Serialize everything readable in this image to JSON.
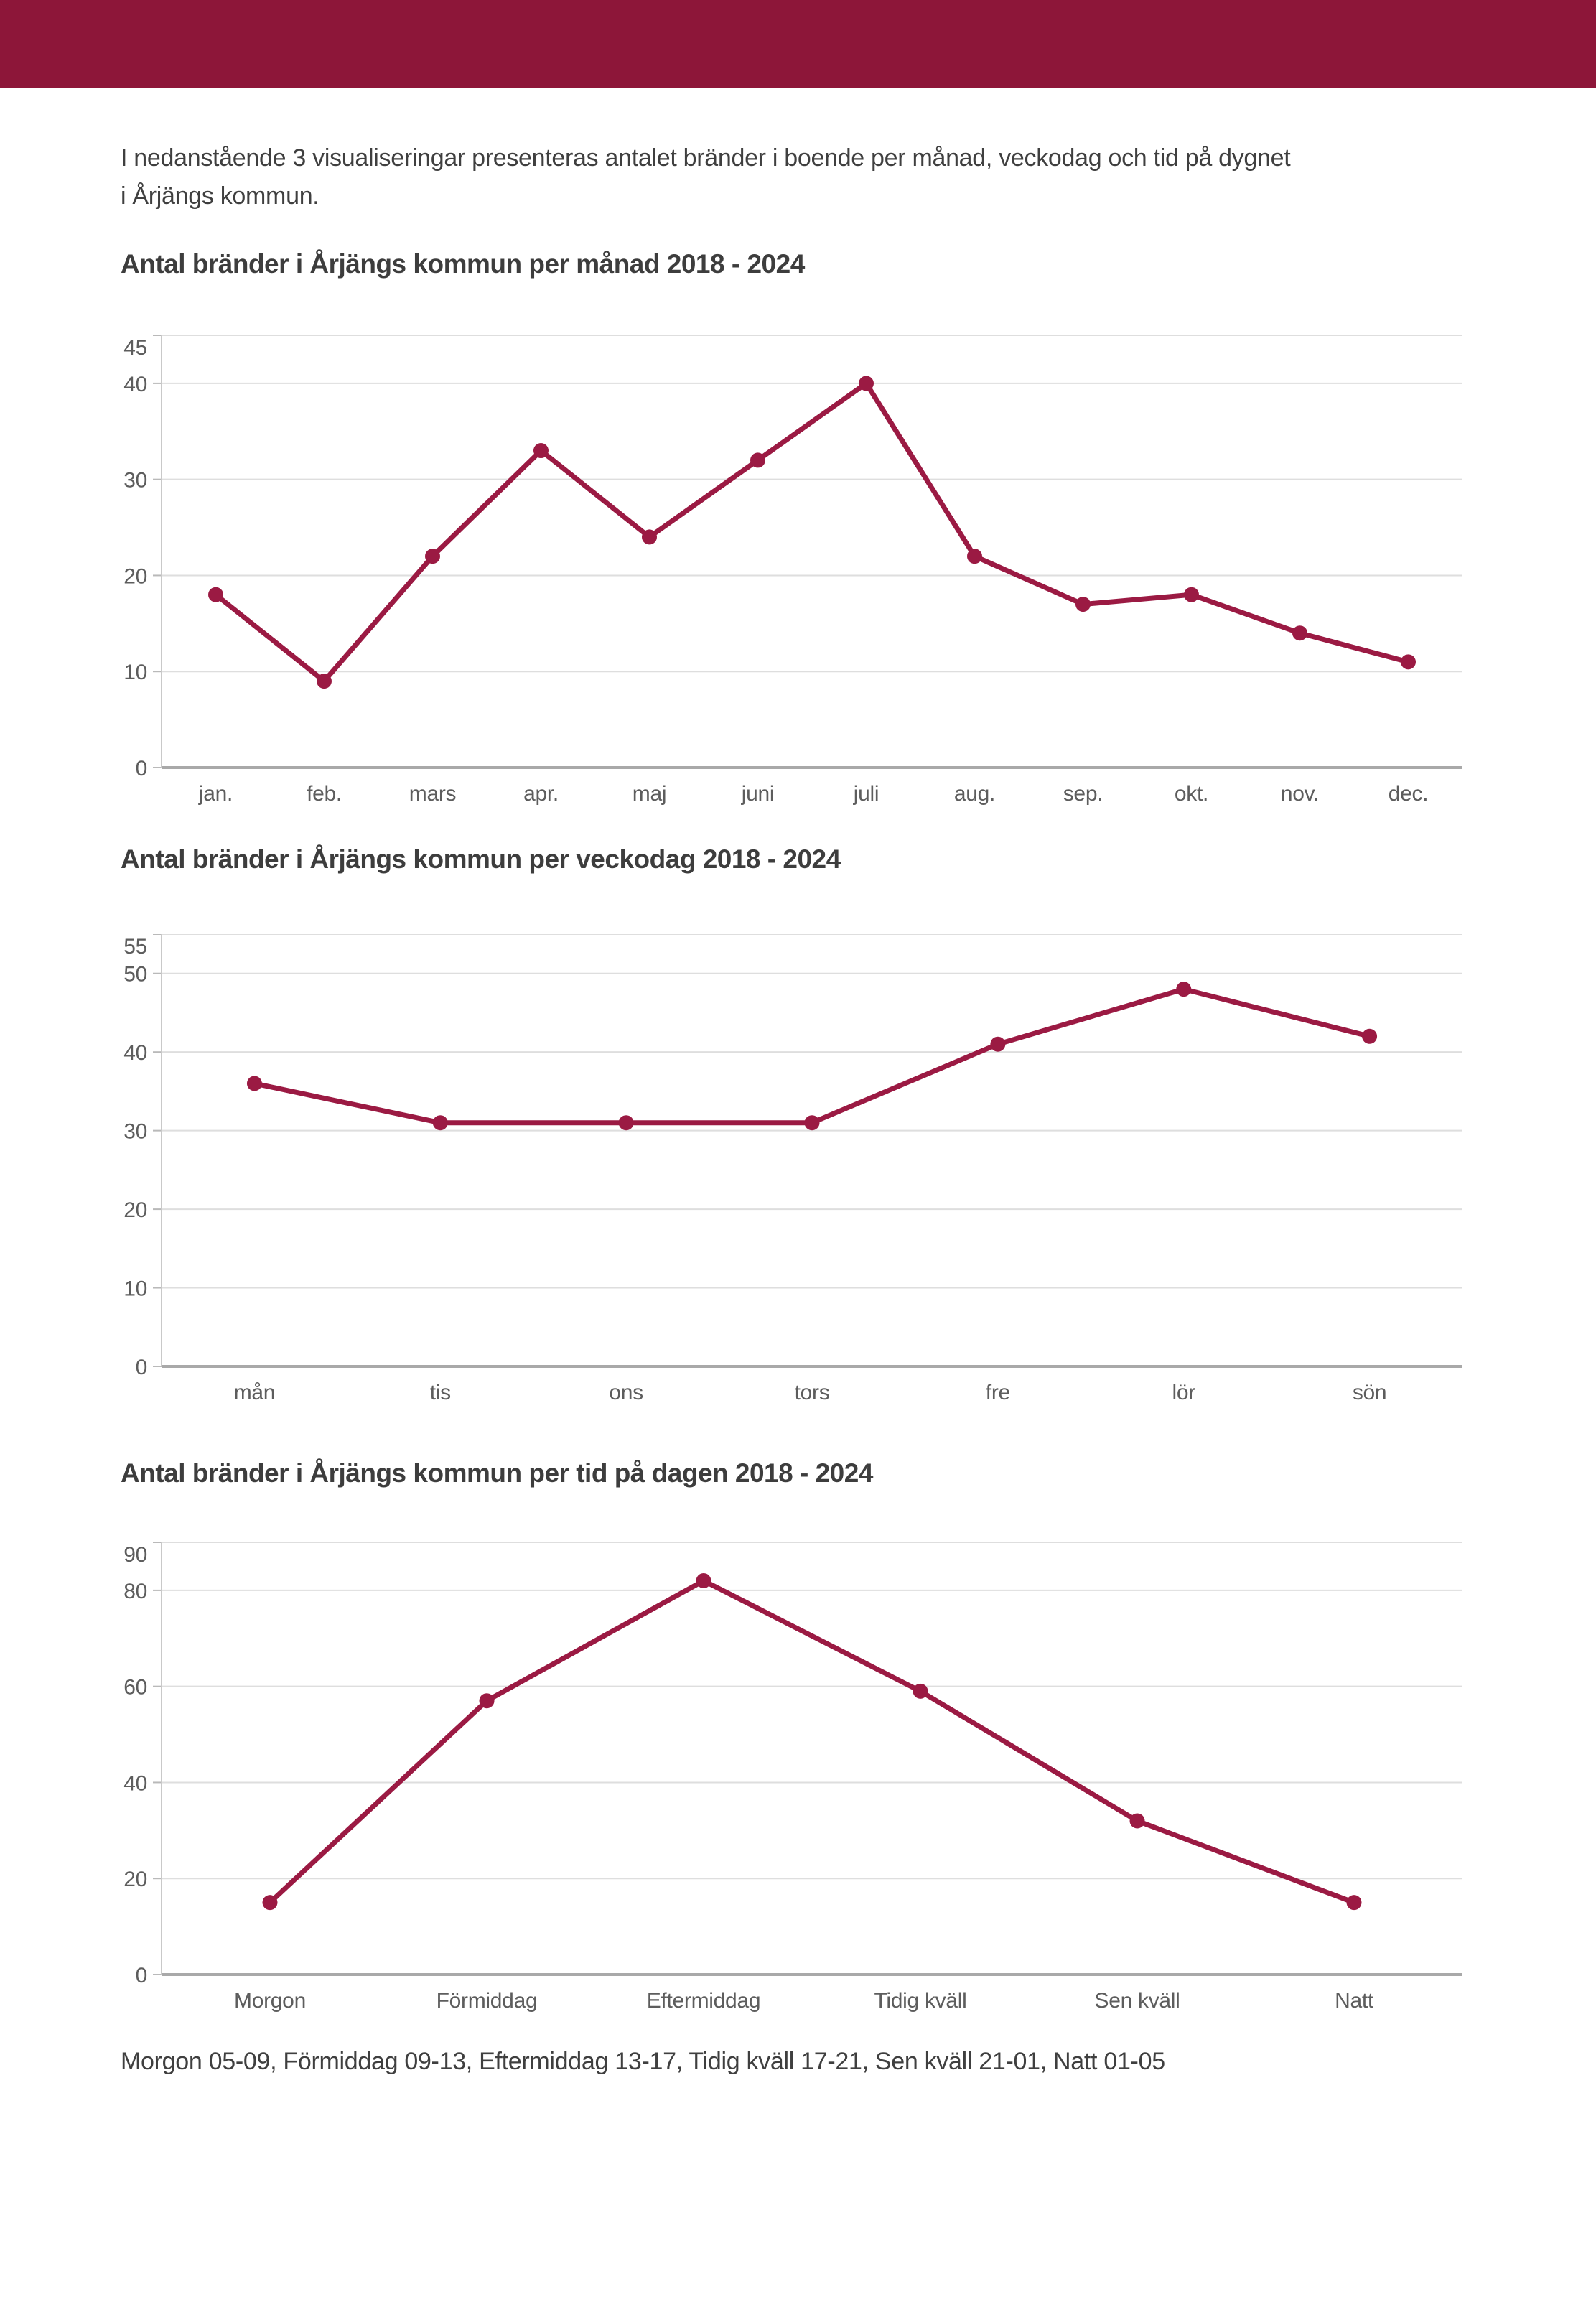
{
  "theme": {
    "header_color": "#8d1639",
    "accent_color": "#9b1a43",
    "grid_color": "#dedede",
    "zero_line_color": "#a9a9a9",
    "y_axis_color": "#c9c9c9",
    "tick_color": "#b9b9b9",
    "tick_label_color": "#5d5d5d",
    "text_color": "#3f3f3f"
  },
  "intro": {
    "line1": "I nedanstående 3 visualiseringar presenteras antalet bränder i boende per månad, veckodag och tid på dygnet",
    "line2": "i Årjängs kommun."
  },
  "footnote": {
    "text": "Morgon 05-09, Förmiddag 09-13, Eftermiddag 13-17, Tidig kväll 17-21, Sen kväll 21-01, Natt 01-05"
  },
  "chart_data": [
    {
      "type": "line",
      "title": "Antal bränder i Årjängs kommun per månad 2018 - 2024",
      "categories": [
        "jan.",
        "feb.",
        "mars",
        "apr.",
        "maj",
        "juni",
        "juli",
        "aug.",
        "sep.",
        "okt.",
        "nov.",
        "dec."
      ],
      "values": [
        18,
        9,
        22,
        33,
        24,
        32,
        40,
        22,
        17,
        18,
        14,
        11
      ],
      "xlabel": "",
      "ylabel": "",
      "ylim": [
        0,
        45
      ],
      "yticks": [
        0,
        10,
        20,
        30,
        40,
        45
      ],
      "grid": true,
      "legend": "none",
      "marker": "dot"
    },
    {
      "type": "line",
      "title": "Antal bränder i Årjängs kommun per veckodag 2018 - 2024",
      "categories": [
        "mån",
        "tis",
        "ons",
        "tors",
        "fre",
        "lör",
        "sön"
      ],
      "values": [
        36,
        31,
        31,
        31,
        41,
        48,
        42
      ],
      "xlabel": "",
      "ylabel": "",
      "ylim": [
        0,
        55
      ],
      "yticks": [
        0,
        10,
        20,
        30,
        40,
        50,
        55
      ],
      "grid": true,
      "legend": "none",
      "marker": "dot"
    },
    {
      "type": "line",
      "title": "Antal bränder i Årjängs kommun per tid på dagen 2018 - 2024",
      "categories": [
        "Morgon",
        "Förmiddag",
        "Eftermiddag",
        "Tidig kväll",
        "Sen kväll",
        "Natt"
      ],
      "values": [
        15,
        57,
        82,
        59,
        32,
        15
      ],
      "xlabel": "",
      "ylabel": "",
      "ylim": [
        0,
        90
      ],
      "yticks": [
        0,
        20,
        40,
        60,
        80,
        90
      ],
      "grid": true,
      "legend": "none",
      "marker": "dot"
    }
  ]
}
